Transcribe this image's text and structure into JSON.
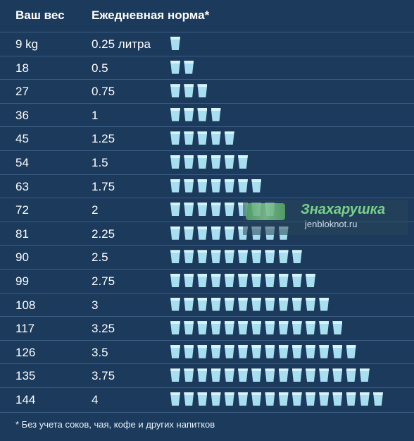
{
  "header": {
    "weight_label": "Ваш вес",
    "norm_label": "Ежедневная норма*"
  },
  "footnote": "* Без учета соков, чая, кофе и других напитков",
  "watermark": {
    "name": "Знахарушка",
    "site": "jenbloknot.ru"
  },
  "colors": {
    "background": "#1b3a5c",
    "cup": "#a7dff0",
    "text": "#ffffff"
  },
  "chart_data": {
    "type": "table",
    "columns": [
      "Ваш вес",
      "Ежедневная норма*"
    ],
    "rows": [
      {
        "weight": "9 kg",
        "norm": "0.25 литра",
        "cups": 1
      },
      {
        "weight": "18",
        "norm": "0.5",
        "cups": 2
      },
      {
        "weight": "27",
        "norm": "0.75",
        "cups": 3
      },
      {
        "weight": "36",
        "norm": "1",
        "cups": 4
      },
      {
        "weight": "45",
        "norm": "1.25",
        "cups": 5
      },
      {
        "weight": "54",
        "norm": "1.5",
        "cups": 6
      },
      {
        "weight": "63",
        "norm": "1.75",
        "cups": 7
      },
      {
        "weight": "72",
        "norm": "2",
        "cups": 8
      },
      {
        "weight": "81",
        "norm": "2.25",
        "cups": 9
      },
      {
        "weight": "90",
        "norm": "2.5",
        "cups": 10
      },
      {
        "weight": "99",
        "norm": "2.75",
        "cups": 11
      },
      {
        "weight": "108",
        "norm": "3",
        "cups": 12
      },
      {
        "weight": "117",
        "norm": "3.25",
        "cups": 13
      },
      {
        "weight": "126",
        "norm": "3.5",
        "cups": 14
      },
      {
        "weight": "135",
        "norm": "3.75",
        "cups": 15
      },
      {
        "weight": "144",
        "norm": "4",
        "cups": 16
      }
    ]
  }
}
